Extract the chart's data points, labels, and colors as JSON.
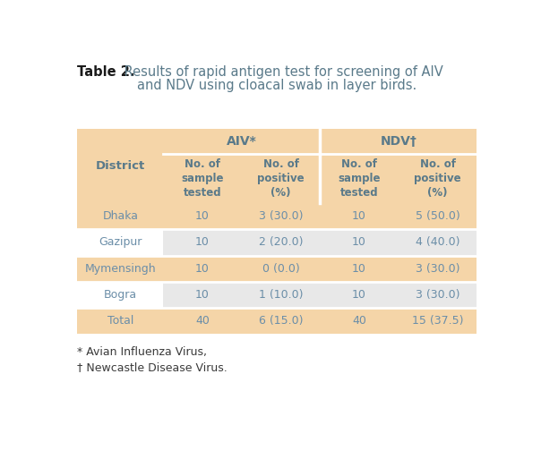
{
  "title_bold": "Table 2.",
  "title_rest": " Results of rapid antigen test for screening of AIV",
  "title_line2": "and NDV using cloacal swab in layer birds.",
  "col_headers_group": [
    "AIV*",
    "NDV†"
  ],
  "col_headers_sub": [
    "No. of\nsample\ntested",
    "No. of\npositive\n(%)",
    "No. of\nsample\ntested",
    "No. of\npositive\n(%)"
  ],
  "row_header": "District",
  "rows": [
    [
      "Dhaka",
      "10",
      "3 (30.0)",
      "10",
      "5 (50.0)"
    ],
    [
      "Gazipur",
      "10",
      "2 (20.0)",
      "10",
      "4 (40.0)"
    ],
    [
      "Mymensingh",
      "10",
      "0 (0.0)",
      "10",
      "3 (30.0)"
    ],
    [
      "Bogra",
      "10",
      "1 (10.0)",
      "10",
      "3 (30.0)"
    ],
    [
      "Total",
      "40",
      "6 (15.0)",
      "40",
      "15 (37.5)"
    ]
  ],
  "footnotes": [
    "* Avian Influenza Virus,",
    "† Newcastle Disease Virus."
  ],
  "color_header_bg": "#F5D5A8",
  "color_row_peach": "#F5D5A8",
  "color_row_white": "#FFFFFF",
  "color_data_gray": "#E8E8E8",
  "color_data_white": "#FFFFFF",
  "color_text": "#6B8EA8",
  "color_header_text": "#5A7A8A",
  "color_title_bold": "#1A1A1A",
  "color_title_rest": "#5A7A8A",
  "bg_color": "#FFFFFF",
  "row_is_peach": [
    true,
    false,
    true,
    false,
    true
  ],
  "figwidth": 6.04,
  "figheight": 5.32,
  "dpi": 100
}
